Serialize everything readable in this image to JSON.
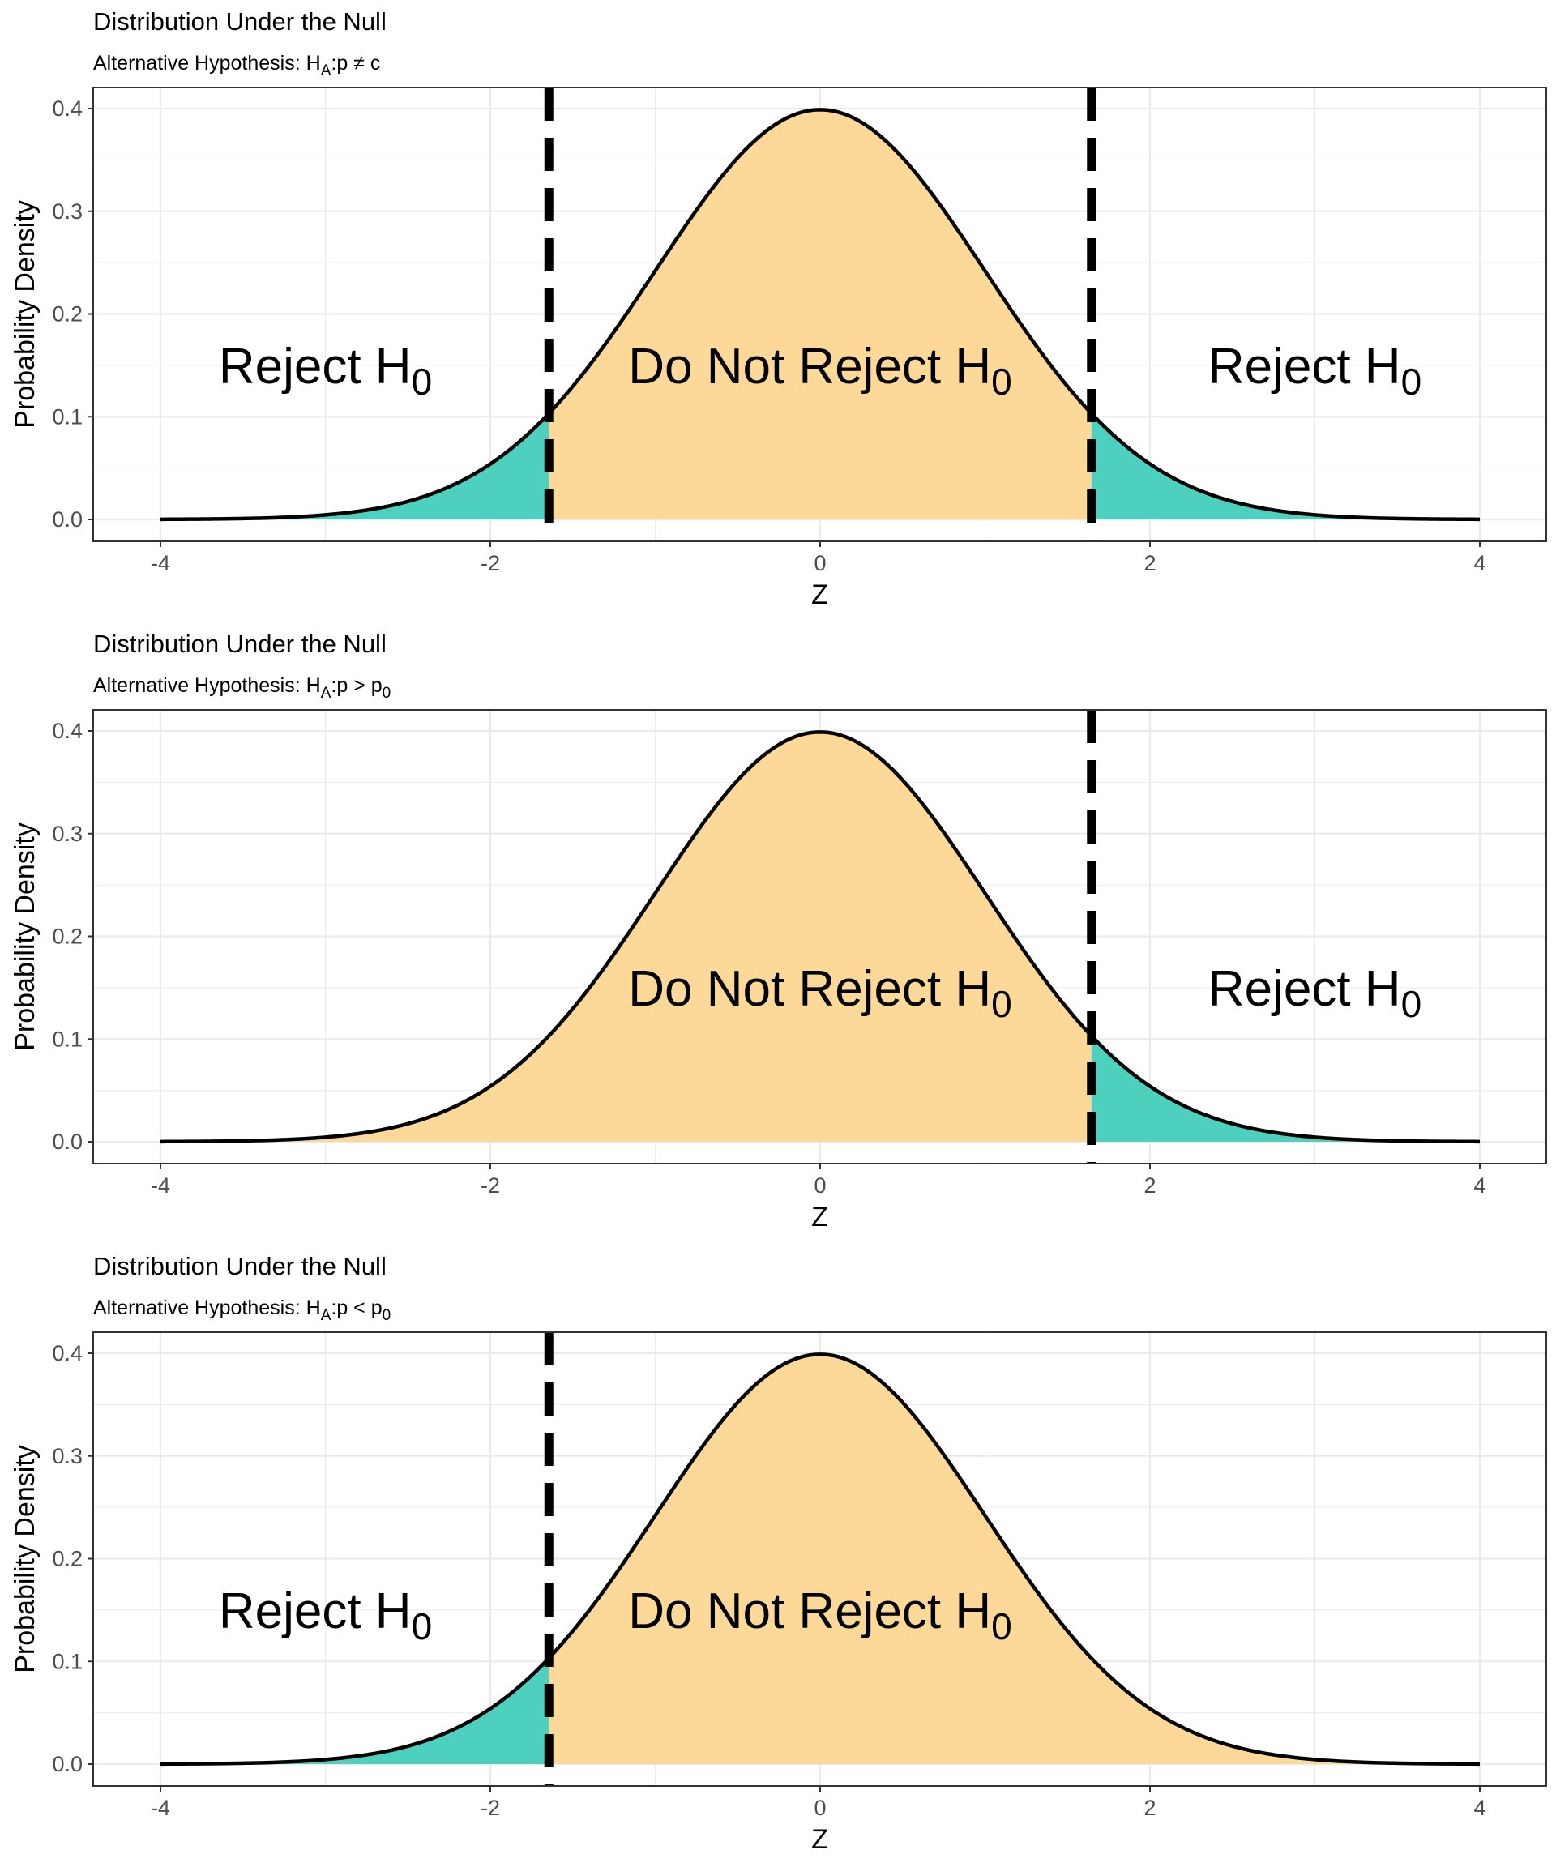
{
  "figure_type": "stacked normal-distribution hypothesis test plots",
  "colors": {
    "accept_fill": "#fcd999",
    "reject_fill": "#4dd0bd",
    "curve": "#000000",
    "critical_line": "#000000",
    "grid": "#ebebeb",
    "panel_border": "#333333"
  },
  "chart_data": [
    {
      "type": "area",
      "title": "Distribution Under the Null",
      "subtitle": {
        "prefix": "Alternative Hypothesis: H",
        "sub1": "A",
        "rel": ":p ≠ c",
        "rest": "",
        "sub2": ""
      },
      "xlabel": "Z",
      "ylabel": "Probability Density",
      "xlim": [
        -4,
        4
      ],
      "ylim": [
        0,
        0.4
      ],
      "x_ticks": [
        -4,
        -2,
        0,
        2,
        4
      ],
      "x_tick_labels": [
        "-4",
        "-2",
        "0",
        "2",
        "4"
      ],
      "y_ticks": [
        0,
        0.1,
        0.2,
        0.3,
        0.4
      ],
      "y_tick_labels": [
        "0.0",
        "0.1",
        "0.2",
        "0.3",
        "0.4"
      ],
      "grid": true,
      "curve": "standard normal density",
      "critical_values": [
        -1.645,
        1.645
      ],
      "rejection_regions": [
        [
          -4,
          -1.645
        ],
        [
          1.645,
          4
        ]
      ],
      "region_labels": [
        {
          "text": "Reject H",
          "sub": "0",
          "x": -3.0,
          "y": 0.15
        },
        {
          "text": "Do Not Reject H",
          "sub": "0",
          "x": 0,
          "y": 0.15
        },
        {
          "text": "Reject H",
          "sub": "0",
          "x": 3.0,
          "y": 0.15
        }
      ]
    },
    {
      "type": "area",
      "title": "Distribution Under the Null",
      "subtitle": {
        "prefix": "Alternative Hypothesis: H",
        "sub1": "A",
        "rel": ":p > p",
        "rest": "",
        "sub2": "0"
      },
      "xlabel": "Z",
      "ylabel": "Probability Density",
      "xlim": [
        -4,
        4
      ],
      "ylim": [
        0,
        0.4
      ],
      "x_ticks": [
        -4,
        -2,
        0,
        2,
        4
      ],
      "x_tick_labels": [
        "-4",
        "-2",
        "0",
        "2",
        "4"
      ],
      "y_ticks": [
        0,
        0.1,
        0.2,
        0.3,
        0.4
      ],
      "y_tick_labels": [
        "0.0",
        "0.1",
        "0.2",
        "0.3",
        "0.4"
      ],
      "grid": true,
      "curve": "standard normal density",
      "critical_values": [
        1.645
      ],
      "rejection_regions": [
        [
          1.645,
          4
        ]
      ],
      "region_labels": [
        {
          "text": "Do Not Reject H",
          "sub": "0",
          "x": 0,
          "y": 0.15
        },
        {
          "text": "Reject H",
          "sub": "0",
          "x": 3.0,
          "y": 0.15
        }
      ]
    },
    {
      "type": "area",
      "title": "Distribution Under the Null",
      "subtitle": {
        "prefix": "Alternative Hypothesis: H",
        "sub1": "A",
        "rel": ":p < p",
        "rest": "",
        "sub2": "0"
      },
      "xlabel": "Z",
      "ylabel": "Probability Density",
      "xlim": [
        -4,
        4
      ],
      "ylim": [
        0,
        0.4
      ],
      "x_ticks": [
        -4,
        -2,
        0,
        2,
        4
      ],
      "x_tick_labels": [
        "-4",
        "-2",
        "0",
        "2",
        "4"
      ],
      "y_ticks": [
        0,
        0.1,
        0.2,
        0.3,
        0.4
      ],
      "y_tick_labels": [
        "0.0",
        "0.1",
        "0.2",
        "0.3",
        "0.4"
      ],
      "grid": true,
      "curve": "standard normal density",
      "critical_values": [
        -1.645
      ],
      "rejection_regions": [
        [
          -4,
          -1.645
        ]
      ],
      "region_labels": [
        {
          "text": "Reject H",
          "sub": "0",
          "x": -3.0,
          "y": 0.15
        },
        {
          "text": "Do Not Reject H",
          "sub": "0",
          "x": 0,
          "y": 0.15
        }
      ]
    }
  ]
}
